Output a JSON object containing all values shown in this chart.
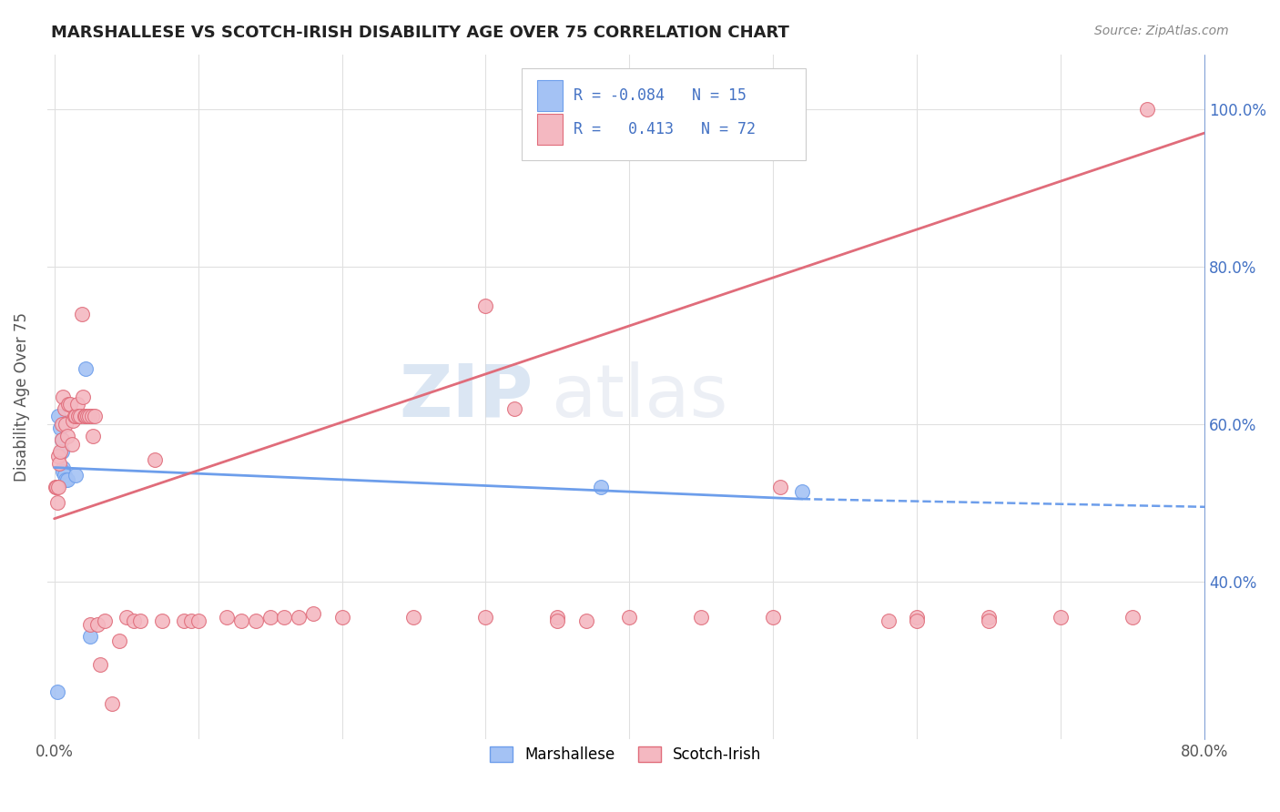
{
  "title": "MARSHALLESE VS SCOTCH-IRISH DISABILITY AGE OVER 75 CORRELATION CHART",
  "source": "Source: ZipAtlas.com",
  "ylabel": "Disability Age Over 75",
  "legend_marshallese_R": "-0.084",
  "legend_marshallese_N": "15",
  "legend_scotchirish_R": "0.413",
  "legend_scotchirish_N": "72",
  "watermark_zip": "ZIP",
  "watermark_atlas": "atlas",
  "marshallese_color": "#a4c2f4",
  "scotchirish_color": "#f4b8c1",
  "marshallese_edge": "#6d9eeb",
  "scotchirish_edge": "#e06c7a",
  "trendline_marshallese": "#6d9eeb",
  "trendline_scotchirish": "#e06c7a",
  "right_tick_color": "#4472C4",
  "grid_color": "#e0e0e0",
  "bg_color": "#ffffff",
  "marshallese_x": [
    0.2,
    0.3,
    0.4,
    0.5,
    0.5,
    0.6,
    0.6,
    0.7,
    0.8,
    0.9,
    1.5,
    2.2,
    2.5,
    38.0,
    52.0
  ],
  "marshallese_y": [
    26.0,
    61.0,
    59.5,
    58.0,
    56.5,
    54.5,
    54.0,
    53.5,
    53.0,
    53.0,
    53.5,
    67.0,
    33.0,
    52.0,
    51.5
  ],
  "scotchirish_x": [
    0.1,
    0.15,
    0.2,
    0.25,
    0.3,
    0.35,
    0.4,
    0.5,
    0.55,
    0.6,
    0.7,
    0.8,
    0.9,
    1.0,
    1.1,
    1.2,
    1.3,
    1.4,
    1.5,
    1.6,
    1.7,
    1.8,
    1.9,
    2.0,
    2.1,
    2.2,
    2.3,
    2.4,
    2.5,
    2.6,
    2.7,
    2.8,
    3.0,
    3.2,
    3.5,
    4.0,
    4.5,
    5.0,
    5.5,
    6.0,
    7.0,
    7.5,
    9.0,
    9.5,
    10.0,
    12.0,
    13.0,
    14.0,
    15.0,
    16.0,
    17.0,
    18.0,
    20.0,
    25.0,
    30.0,
    35.0,
    40.0,
    45.0,
    50.0,
    60.0,
    65.0,
    70.0,
    75.0,
    76.0,
    32.0,
    35.0,
    37.0,
    50.5,
    58.0,
    60.0,
    65.0,
    30.0
  ],
  "scotchirish_y": [
    52.0,
    52.0,
    50.0,
    52.0,
    56.0,
    55.0,
    56.5,
    60.0,
    58.0,
    63.5,
    62.0,
    60.0,
    58.5,
    62.5,
    62.5,
    57.5,
    60.5,
    61.0,
    61.0,
    62.5,
    61.0,
    61.0,
    74.0,
    63.5,
    61.0,
    61.0,
    61.0,
    61.0,
    34.5,
    61.0,
    58.5,
    61.0,
    34.5,
    29.5,
    35.0,
    24.5,
    32.5,
    35.5,
    35.0,
    35.0,
    55.5,
    35.0,
    35.0,
    35.0,
    35.0,
    35.5,
    35.0,
    35.0,
    35.5,
    35.5,
    35.5,
    36.0,
    35.5,
    35.5,
    35.5,
    35.5,
    35.5,
    35.5,
    35.5,
    35.5,
    35.5,
    35.5,
    35.5,
    100.0,
    62.0,
    35.0,
    35.0,
    52.0,
    35.0,
    35.0,
    35.0,
    75.0
  ],
  "xlim_min": 0.0,
  "xlim_max": 80.0,
  "ylim_min": 20.0,
  "ylim_max": 107.0,
  "trend_marsh_x0": 0.0,
  "trend_marsh_x1": 52.0,
  "trend_marsh_y0": 54.5,
  "trend_marsh_y1": 50.5,
  "trend_marsh_dash_x0": 52.0,
  "trend_marsh_dash_x1": 80.0,
  "trend_marsh_dash_y0": 50.5,
  "trend_marsh_dash_y1": 49.5,
  "trend_si_x0": 0.0,
  "trend_si_x1": 80.0,
  "trend_si_y0": 48.0,
  "trend_si_y1": 97.0
}
